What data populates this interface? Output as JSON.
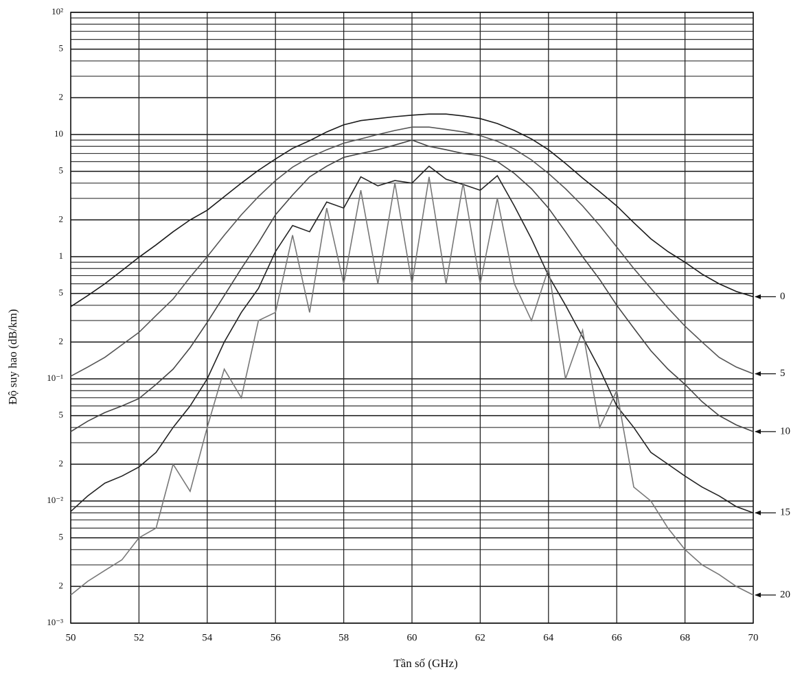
{
  "chart_data": {
    "type": "line",
    "x_label": "Tần số (GHz)",
    "y_label": "Độ suy hao (dB/km)",
    "log_y": true,
    "grid": true,
    "xlim": [
      50,
      70
    ],
    "xticks": [
      50,
      52,
      54,
      56,
      58,
      60,
      62,
      64,
      66,
      68,
      70
    ],
    "ylim": [
      0.001,
      100
    ],
    "yticks": [
      {
        "value": 100,
        "label": "10²"
      },
      {
        "value": 50,
        "label": "5"
      },
      {
        "value": 20,
        "label": "2"
      },
      10,
      5,
      2,
      1,
      {
        "value": 0.5,
        "label": "5"
      },
      {
        "value": 0.2,
        "label": "2"
      },
      {
        "value": 0.1,
        "label": "10⁻¹"
      },
      {
        "value": 0.05,
        "label": "5"
      },
      {
        "value": 0.02,
        "label": "2"
      },
      {
        "value": 0.01,
        "label": "10⁻²"
      },
      {
        "value": 0.005,
        "label": "5"
      },
      {
        "value": 0.002,
        "label": "2"
      },
      {
        "value": 0.001,
        "label": "10⁻³"
      }
    ],
    "yminorticks": [
      0.003,
      0.004,
      0.006,
      0.007,
      0.008,
      0.009,
      0.03,
      0.04,
      0.06,
      0.07,
      0.08,
      0.09,
      0.3,
      0.4,
      0.6,
      0.7,
      0.8,
      0.9,
      3,
      4,
      6,
      7,
      8,
      9,
      30,
      40,
      60,
      70,
      80,
      90
    ],
    "x": [
      50,
      50.5,
      51,
      51.5,
      52,
      52.5,
      53,
      53.5,
      54,
      54.5,
      55,
      55.5,
      56,
      56.5,
      57,
      57.5,
      58,
      58.5,
      59,
      59.5,
      60,
      60.5,
      61,
      61.5,
      62,
      62.5,
      63,
      63.5,
      64,
      64.5,
      65,
      65.5,
      66,
      66.5,
      67,
      67.5,
      68,
      68.5,
      69,
      69.5,
      70
    ],
    "series": [
      {
        "name": "0",
        "color": "#1a1a1a",
        "values": [
          0.39,
          0.48,
          0.6,
          0.77,
          0.99,
          1.25,
          1.6,
          2.0,
          2.4,
          3.1,
          4.0,
          5.1,
          6.3,
          7.7,
          8.9,
          10.5,
          12,
          13,
          13.5,
          14,
          14.4,
          14.7,
          14.7,
          14.2,
          13.5,
          12.3,
          10.8,
          9.2,
          7.5,
          5.8,
          4.4,
          3.4,
          2.6,
          1.9,
          1.4,
          1.1,
          0.9,
          0.72,
          0.6,
          0.52,
          0.47
        ]
      },
      {
        "name": "5",
        "color": "#555555",
        "values": [
          0.105,
          0.125,
          0.15,
          0.19,
          0.24,
          0.33,
          0.45,
          0.68,
          1.0,
          1.5,
          2.2,
          3.1,
          4.2,
          5.4,
          6.5,
          7.5,
          8.5,
          9.2,
          10,
          10.8,
          11.5,
          11.5,
          11,
          10.5,
          9.8,
          8.8,
          7.6,
          6.2,
          4.8,
          3.6,
          2.6,
          1.8,
          1.2,
          0.8,
          0.55,
          0.38,
          0.27,
          0.2,
          0.15,
          0.125,
          0.11
        ]
      },
      {
        "name": "10",
        "color": "#444444",
        "values": [
          0.037,
          0.045,
          0.053,
          0.06,
          0.069,
          0.09,
          0.12,
          0.18,
          0.29,
          0.48,
          0.8,
          1.3,
          2.2,
          3.2,
          4.5,
          5.5,
          6.5,
          7.0,
          7.5,
          8.2,
          9.0,
          8.0,
          7.5,
          7.0,
          6.7,
          6.0,
          4.8,
          3.6,
          2.5,
          1.6,
          1.0,
          0.65,
          0.4,
          0.26,
          0.17,
          0.12,
          0.09,
          0.065,
          0.05,
          0.042,
          0.037
        ]
      },
      {
        "name": "15",
        "color": "#222222",
        "values": [
          0.0082,
          0.011,
          0.014,
          0.016,
          0.019,
          0.025,
          0.04,
          0.06,
          0.1,
          0.2,
          0.35,
          0.55,
          1.1,
          1.8,
          1.6,
          2.8,
          2.5,
          4.5,
          3.8,
          4.2,
          4.0,
          5.5,
          4.3,
          3.9,
          3.5,
          4.6,
          2.6,
          1.4,
          0.7,
          0.4,
          0.22,
          0.12,
          0.06,
          0.04,
          0.025,
          0.02,
          0.016,
          0.013,
          0.011,
          0.009,
          0.008
        ]
      },
      {
        "name": "20",
        "color": "#777777",
        "values": [
          0.0017,
          0.0022,
          0.0027,
          0.0033,
          0.005,
          0.006,
          0.02,
          0.012,
          0.04,
          0.12,
          0.07,
          0.3,
          0.35,
          1.5,
          0.35,
          2.5,
          0.6,
          3.5,
          0.6,
          4,
          0.6,
          4.5,
          0.6,
          4,
          0.6,
          3,
          0.6,
          0.3,
          0.8,
          0.1,
          0.25,
          0.04,
          0.08,
          0.013,
          0.01,
          0.006,
          0.004,
          0.003,
          0.0025,
          0.002,
          0.0017
        ]
      }
    ]
  }
}
